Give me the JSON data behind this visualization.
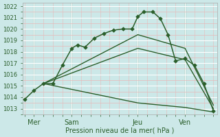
{
  "xlabel": "Pression niveau de la mer( hPa )",
  "ylim_min": 1012.5,
  "ylim_max": 1022.3,
  "yticks": [
    1013,
    1014,
    1015,
    1016,
    1017,
    1018,
    1019,
    1020,
    1021,
    1022
  ],
  "xlim_min": -0.1,
  "xlim_max": 10.2,
  "background_color": "#cce8e8",
  "major_grid_color": "#ffffff",
  "minor_grid_color": "#e8b8b8",
  "line_color": "#2a5e2a",
  "day_labels": [
    "Mer",
    "Sam",
    "Jeu",
    "Ven"
  ],
  "day_positions": [
    0.5,
    2.5,
    6.0,
    8.5
  ],
  "vline_positions": [
    0.5,
    2.5,
    6.0,
    8.5
  ],
  "series": [
    {
      "x": [
        0.0,
        0.5,
        1.0,
        1.5,
        2.0,
        2.5,
        2.8,
        3.2,
        3.7,
        4.2,
        4.7,
        5.2,
        5.7,
        6.0,
        6.3,
        6.8,
        7.2,
        7.6,
        8.0,
        8.5,
        9.0,
        9.5,
        10.0
      ],
      "y": [
        1013.8,
        1014.6,
        1015.2,
        1015.2,
        1016.8,
        1018.3,
        1018.6,
        1018.4,
        1019.2,
        1019.6,
        1019.9,
        1020.0,
        1020.0,
        1021.1,
        1021.5,
        1021.5,
        1020.9,
        1019.5,
        1017.2,
        1017.4,
        1016.8,
        1015.2,
        1012.8
      ],
      "marker": "D",
      "markersize": 2.8,
      "linewidth": 1.1,
      "has_markers": true
    },
    {
      "x": [
        1.0,
        6.0,
        8.5,
        10.0
      ],
      "y": [
        1015.2,
        1019.5,
        1018.3,
        1013.3
      ],
      "marker": null,
      "markersize": 0,
      "linewidth": 1.0,
      "has_markers": false
    },
    {
      "x": [
        1.0,
        6.0,
        8.5,
        10.0
      ],
      "y": [
        1015.2,
        1018.3,
        1017.3,
        1013.0
      ],
      "marker": null,
      "markersize": 0,
      "linewidth": 1.0,
      "has_markers": false
    },
    {
      "x": [
        1.0,
        6.0,
        8.5,
        10.0
      ],
      "y": [
        1015.2,
        1013.5,
        1013.1,
        1012.7
      ],
      "marker": null,
      "markersize": 0,
      "linewidth": 1.0,
      "has_markers": false
    }
  ]
}
